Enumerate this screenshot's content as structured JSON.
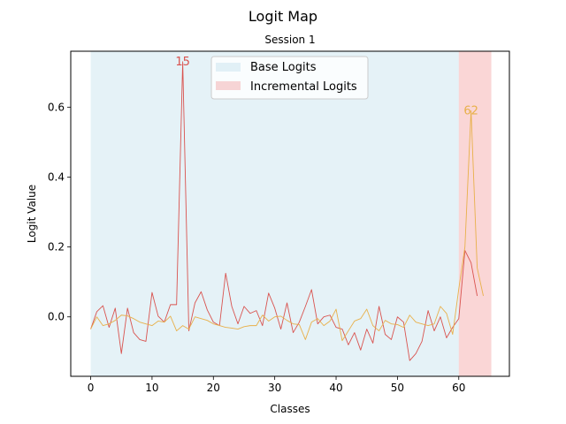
{
  "chart_data": {
    "type": "line",
    "title": "Logit Map",
    "subtitle": "Session 1",
    "xlabel": "Classes",
    "ylabel": "Logit Value",
    "xlim": [
      -3.25,
      68.25
    ],
    "ylim": [
      -0.17,
      0.76
    ],
    "xticks": [
      0,
      10,
      20,
      30,
      40,
      50,
      60
    ],
    "yticks": [
      0.0,
      0.2,
      0.4,
      0.6
    ],
    "ytick_labels": [
      "0.0",
      "0.2",
      "0.4",
      "0.6"
    ],
    "grid": false,
    "legend_position": "upper-center",
    "regions": [
      {
        "name": "Base Logits",
        "x0": 0,
        "x1": 60,
        "color": "#add8e6",
        "opacity": 0.32
      },
      {
        "name": "Incremental Logits",
        "x0": 60,
        "x1": 65.3,
        "color": "#f08080",
        "opacity": 0.32
      }
    ],
    "series": [
      {
        "color": "#d9534f",
        "x": [
          0,
          1,
          2,
          3,
          4,
          5,
          6,
          7,
          8,
          9,
          10,
          11,
          12,
          13,
          14,
          15,
          16,
          17,
          18,
          19,
          20,
          21,
          22,
          23,
          24,
          25,
          26,
          27,
          28,
          29,
          30,
          31,
          32,
          33,
          34,
          35,
          36,
          37,
          38,
          39,
          40,
          41,
          42,
          43,
          44,
          45,
          46,
          47,
          48,
          49,
          50,
          51,
          52,
          53,
          54,
          55,
          56,
          57,
          58,
          59,
          60,
          61,
          62,
          63,
          64
        ],
        "values": [
          -0.035,
          0.015,
          0.032,
          -0.03,
          0.025,
          -0.105,
          0.025,
          -0.045,
          -0.065,
          -0.07,
          0.07,
          0.002,
          -0.015,
          0.035,
          0.035,
          0.73,
          -0.04,
          0.04,
          0.072,
          0.02,
          -0.015,
          -0.025,
          0.125,
          0.03,
          -0.02,
          0.03,
          0.01,
          0.018,
          -0.025,
          0.068,
          0.025,
          -0.035,
          0.04,
          -0.045,
          -0.015,
          0.03,
          0.078,
          -0.02,
          0.0,
          0.005,
          -0.03,
          -0.035,
          -0.08,
          -0.045,
          -0.095,
          -0.035,
          -0.075,
          0.03,
          -0.05,
          -0.065,
          0.0,
          -0.015,
          -0.125,
          -0.105,
          -0.07,
          0.018,
          -0.04,
          0.0,
          -0.06,
          -0.03,
          -0.005,
          0.19,
          0.155,
          0.06,
          null
        ]
      },
      {
        "color": "#e8b04a",
        "x": [
          0,
          1,
          2,
          3,
          4,
          5,
          6,
          7,
          8,
          9,
          10,
          11,
          12,
          13,
          14,
          15,
          16,
          17,
          18,
          19,
          20,
          21,
          22,
          23,
          24,
          25,
          26,
          27,
          28,
          29,
          30,
          31,
          32,
          33,
          34,
          35,
          36,
          37,
          38,
          39,
          40,
          41,
          42,
          43,
          44,
          45,
          46,
          47,
          48,
          49,
          50,
          51,
          52,
          53,
          54,
          55,
          56,
          57,
          58,
          59,
          60,
          61,
          62,
          63,
          64
        ],
        "values": [
          -0.035,
          0.0,
          -0.025,
          -0.02,
          -0.01,
          0.005,
          0.003,
          -0.005,
          -0.015,
          -0.02,
          -0.025,
          -0.012,
          -0.015,
          0.002,
          -0.04,
          -0.025,
          -0.035,
          0.0,
          -0.005,
          -0.01,
          -0.02,
          -0.025,
          -0.03,
          -0.032,
          -0.035,
          -0.028,
          -0.025,
          -0.025,
          0.005,
          -0.012,
          0.0,
          0.002,
          -0.01,
          -0.02,
          -0.022,
          -0.065,
          -0.015,
          -0.005,
          -0.025,
          -0.012,
          0.022,
          -0.068,
          -0.04,
          -0.012,
          -0.005,
          0.022,
          -0.025,
          -0.04,
          -0.01,
          -0.02,
          -0.022,
          -0.03,
          0.005,
          -0.015,
          -0.02,
          -0.025,
          -0.02,
          0.03,
          0.01,
          -0.05,
          0.08,
          0.2,
          0.59,
          0.14,
          0.06
        ]
      }
    ],
    "annotations": [
      {
        "text": "15",
        "x": 15,
        "y": 0.73,
        "color": "#d9534f"
      },
      {
        "text": "62",
        "x": 62,
        "y": 0.59,
        "color": "#e8b04a"
      }
    ]
  }
}
